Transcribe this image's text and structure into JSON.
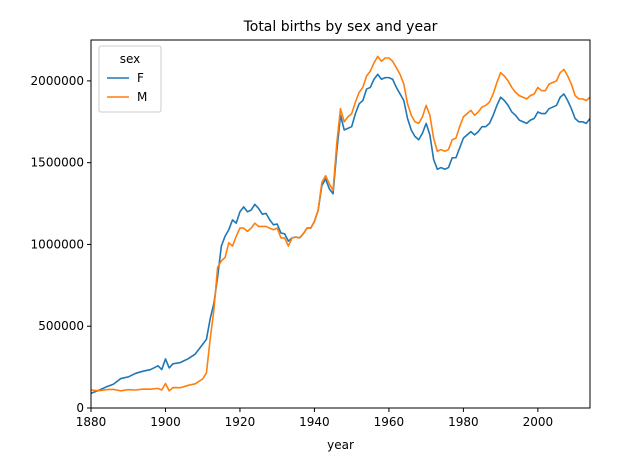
{
  "chart_data": {
    "type": "line",
    "title": "Total births by sex and year",
    "xlabel": "year",
    "ylabel": "",
    "xlim": [
      1880,
      2014
    ],
    "ylim": [
      0,
      2250000
    ],
    "x_ticks": [
      1880,
      1900,
      1920,
      1940,
      1960,
      1980,
      2000
    ],
    "x_tick_labels": [
      "1880",
      "1900",
      "1920",
      "1940",
      "1960",
      "1980",
      "2000"
    ],
    "y_ticks": [
      0,
      500000,
      1000000,
      1500000,
      2000000
    ],
    "y_tick_labels": [
      "0",
      "500000",
      "1000000",
      "1500000",
      "2000000"
    ],
    "grid": false,
    "legend": {
      "title": "sex",
      "placement": "upper-left"
    },
    "series": [
      {
        "name": "F",
        "color": "#1f77b4",
        "points": [
          [
            1880,
            90000
          ],
          [
            1882,
            107000
          ],
          [
            1884,
            128000
          ],
          [
            1886,
            145000
          ],
          [
            1888,
            180000
          ],
          [
            1890,
            190000
          ],
          [
            1892,
            212000
          ],
          [
            1894,
            225000
          ],
          [
            1896,
            235000
          ],
          [
            1898,
            258000
          ],
          [
            1899,
            235000
          ],
          [
            1900,
            300000
          ],
          [
            1901,
            245000
          ],
          [
            1902,
            270000
          ],
          [
            1904,
            278000
          ],
          [
            1906,
            300000
          ],
          [
            1908,
            330000
          ],
          [
            1910,
            390000
          ],
          [
            1911,
            420000
          ],
          [
            1912,
            545000
          ],
          [
            1913,
            640000
          ],
          [
            1914,
            800000
          ],
          [
            1915,
            990000
          ],
          [
            1916,
            1050000
          ],
          [
            1917,
            1090000
          ],
          [
            1918,
            1150000
          ],
          [
            1919,
            1130000
          ],
          [
            1920,
            1200000
          ],
          [
            1921,
            1230000
          ],
          [
            1922,
            1200000
          ],
          [
            1923,
            1210000
          ],
          [
            1924,
            1245000
          ],
          [
            1925,
            1220000
          ],
          [
            1926,
            1185000
          ],
          [
            1927,
            1190000
          ],
          [
            1928,
            1150000
          ],
          [
            1929,
            1120000
          ],
          [
            1930,
            1125000
          ],
          [
            1931,
            1070000
          ],
          [
            1932,
            1065000
          ],
          [
            1933,
            1020000
          ],
          [
            1934,
            1040000
          ],
          [
            1935,
            1045000
          ],
          [
            1936,
            1040000
          ],
          [
            1937,
            1065000
          ],
          [
            1938,
            1100000
          ],
          [
            1939,
            1100000
          ],
          [
            1940,
            1140000
          ],
          [
            1941,
            1210000
          ],
          [
            1942,
            1360000
          ],
          [
            1943,
            1400000
          ],
          [
            1944,
            1340000
          ],
          [
            1945,
            1310000
          ],
          [
            1946,
            1570000
          ],
          [
            1947,
            1790000
          ],
          [
            1948,
            1700000
          ],
          [
            1949,
            1710000
          ],
          [
            1950,
            1720000
          ],
          [
            1951,
            1800000
          ],
          [
            1952,
            1860000
          ],
          [
            1953,
            1880000
          ],
          [
            1954,
            1950000
          ],
          [
            1955,
            1960000
          ],
          [
            1956,
            2010000
          ],
          [
            1957,
            2040000
          ],
          [
            1958,
            2010000
          ],
          [
            1959,
            2020000
          ],
          [
            1960,
            2020000
          ],
          [
            1961,
            2010000
          ],
          [
            1962,
            1960000
          ],
          [
            1963,
            1920000
          ],
          [
            1964,
            1880000
          ],
          [
            1965,
            1770000
          ],
          [
            1966,
            1700000
          ],
          [
            1967,
            1660000
          ],
          [
            1968,
            1640000
          ],
          [
            1969,
            1680000
          ],
          [
            1970,
            1740000
          ],
          [
            1971,
            1670000
          ],
          [
            1972,
            1520000
          ],
          [
            1973,
            1460000
          ],
          [
            1974,
            1470000
          ],
          [
            1975,
            1460000
          ],
          [
            1976,
            1470000
          ],
          [
            1977,
            1530000
          ],
          [
            1978,
            1530000
          ],
          [
            1979,
            1590000
          ],
          [
            1980,
            1650000
          ],
          [
            1981,
            1670000
          ],
          [
            1982,
            1690000
          ],
          [
            1983,
            1670000
          ],
          [
            1984,
            1690000
          ],
          [
            1985,
            1720000
          ],
          [
            1986,
            1720000
          ],
          [
            1987,
            1740000
          ],
          [
            1988,
            1790000
          ],
          [
            1989,
            1850000
          ],
          [
            1990,
            1900000
          ],
          [
            1991,
            1880000
          ],
          [
            1992,
            1850000
          ],
          [
            1993,
            1810000
          ],
          [
            1994,
            1790000
          ],
          [
            1995,
            1760000
          ],
          [
            1996,
            1750000
          ],
          [
            1997,
            1740000
          ],
          [
            1998,
            1760000
          ],
          [
            1999,
            1770000
          ],
          [
            2000,
            1810000
          ],
          [
            2001,
            1800000
          ],
          [
            2002,
            1800000
          ],
          [
            2003,
            1830000
          ],
          [
            2004,
            1840000
          ],
          [
            2005,
            1850000
          ],
          [
            2006,
            1900000
          ],
          [
            2007,
            1920000
          ],
          [
            2008,
            1880000
          ],
          [
            2009,
            1830000
          ],
          [
            2010,
            1770000
          ],
          [
            2011,
            1750000
          ],
          [
            2012,
            1750000
          ],
          [
            2013,
            1740000
          ],
          [
            2014,
            1770000
          ]
        ]
      },
      {
        "name": "M",
        "color": "#ff7f0e",
        "points": [
          [
            1880,
            110000
          ],
          [
            1882,
            105000
          ],
          [
            1884,
            112000
          ],
          [
            1886,
            114000
          ],
          [
            1888,
            105000
          ],
          [
            1890,
            112000
          ],
          [
            1892,
            110000
          ],
          [
            1894,
            116000
          ],
          [
            1896,
            115000
          ],
          [
            1898,
            120000
          ],
          [
            1899,
            110000
          ],
          [
            1900,
            150000
          ],
          [
            1901,
            105000
          ],
          [
            1902,
            125000
          ],
          [
            1904,
            124000
          ],
          [
            1906,
            138000
          ],
          [
            1908,
            148000
          ],
          [
            1910,
            178000
          ],
          [
            1911,
            215000
          ],
          [
            1912,
            420000
          ],
          [
            1913,
            600000
          ],
          [
            1914,
            860000
          ],
          [
            1915,
            900000
          ],
          [
            1916,
            920000
          ],
          [
            1917,
            1010000
          ],
          [
            1918,
            990000
          ],
          [
            1919,
            1050000
          ],
          [
            1920,
            1100000
          ],
          [
            1921,
            1100000
          ],
          [
            1922,
            1080000
          ],
          [
            1923,
            1100000
          ],
          [
            1924,
            1130000
          ],
          [
            1925,
            1110000
          ],
          [
            1926,
            1110000
          ],
          [
            1927,
            1110000
          ],
          [
            1928,
            1100000
          ],
          [
            1929,
            1090000
          ],
          [
            1930,
            1100000
          ],
          [
            1931,
            1040000
          ],
          [
            1932,
            1040000
          ],
          [
            1933,
            990000
          ],
          [
            1934,
            1040000
          ],
          [
            1935,
            1045000
          ],
          [
            1936,
            1040000
          ],
          [
            1937,
            1065000
          ],
          [
            1938,
            1100000
          ],
          [
            1939,
            1100000
          ],
          [
            1940,
            1140000
          ],
          [
            1941,
            1210000
          ],
          [
            1942,
            1380000
          ],
          [
            1943,
            1420000
          ],
          [
            1944,
            1370000
          ],
          [
            1945,
            1330000
          ],
          [
            1946,
            1620000
          ],
          [
            1947,
            1830000
          ],
          [
            1948,
            1750000
          ],
          [
            1949,
            1780000
          ],
          [
            1950,
            1800000
          ],
          [
            1951,
            1870000
          ],
          [
            1952,
            1930000
          ],
          [
            1953,
            1960000
          ],
          [
            1954,
            2030000
          ],
          [
            1955,
            2060000
          ],
          [
            1956,
            2110000
          ],
          [
            1957,
            2150000
          ],
          [
            1958,
            2120000
          ],
          [
            1959,
            2140000
          ],
          [
            1960,
            2140000
          ],
          [
            1961,
            2120000
          ],
          [
            1962,
            2080000
          ],
          [
            1963,
            2040000
          ],
          [
            1964,
            1980000
          ],
          [
            1965,
            1860000
          ],
          [
            1966,
            1790000
          ],
          [
            1967,
            1750000
          ],
          [
            1968,
            1740000
          ],
          [
            1969,
            1780000
          ],
          [
            1970,
            1850000
          ],
          [
            1971,
            1790000
          ],
          [
            1972,
            1650000
          ],
          [
            1973,
            1570000
          ],
          [
            1974,
            1580000
          ],
          [
            1975,
            1570000
          ],
          [
            1976,
            1580000
          ],
          [
            1977,
            1640000
          ],
          [
            1978,
            1650000
          ],
          [
            1979,
            1720000
          ],
          [
            1980,
            1780000
          ],
          [
            1981,
            1800000
          ],
          [
            1982,
            1820000
          ],
          [
            1983,
            1790000
          ],
          [
            1984,
            1810000
          ],
          [
            1985,
            1840000
          ],
          [
            1986,
            1850000
          ],
          [
            1987,
            1870000
          ],
          [
            1988,
            1920000
          ],
          [
            1989,
            1990000
          ],
          [
            1990,
            2050000
          ],
          [
            1991,
            2030000
          ],
          [
            1992,
            2000000
          ],
          [
            1993,
            1960000
          ],
          [
            1994,
            1930000
          ],
          [
            1995,
            1910000
          ],
          [
            1996,
            1900000
          ],
          [
            1997,
            1890000
          ],
          [
            1998,
            1910000
          ],
          [
            1999,
            1920000
          ],
          [
            2000,
            1960000
          ],
          [
            2001,
            1940000
          ],
          [
            2002,
            1940000
          ],
          [
            2003,
            1980000
          ],
          [
            2004,
            1990000
          ],
          [
            2005,
            2000000
          ],
          [
            2006,
            2050000
          ],
          [
            2007,
            2070000
          ],
          [
            2008,
            2030000
          ],
          [
            2009,
            1980000
          ],
          [
            2010,
            1910000
          ],
          [
            2011,
            1890000
          ],
          [
            2012,
            1890000
          ],
          [
            2013,
            1880000
          ],
          [
            2014,
            1900000
          ]
        ]
      }
    ]
  }
}
